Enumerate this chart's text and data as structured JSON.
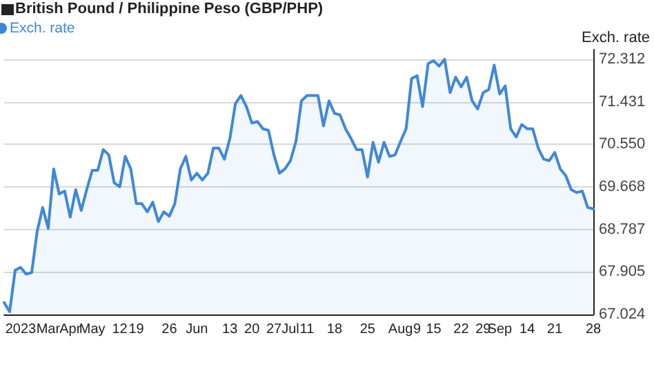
{
  "chart_data": {
    "type": "area",
    "title": "British Pound / Philippine Peso (GBP/PHP)",
    "ylabel": "Exch. rate",
    "legend": "top left",
    "grid": "y",
    "marker": "none",
    "line_style": "solid",
    "ylim": [
      67.024,
      72.51
    ],
    "yticks": [
      67.024,
      67.905,
      68.787,
      69.668,
      {
        "value": 70.55,
        "label": "70.550"
      },
      71.431,
      72.312
    ],
    "categories": [
      null,
      null,
      null,
      "2023",
      null,
      null,
      null,
      null,
      "Mar",
      null,
      null,
      null,
      "Apr",
      null,
      null,
      null,
      "May",
      null,
      null,
      null,
      null,
      "12",
      null,
      null,
      "19",
      null,
      null,
      null,
      null,
      null,
      "26",
      null,
      null,
      null,
      null,
      "Jun",
      null,
      null,
      null,
      null,
      null,
      "13",
      null,
      null,
      null,
      "20",
      null,
      null,
      null,
      "27",
      null,
      null,
      "Jul",
      null,
      null,
      "11",
      null,
      null,
      null,
      null,
      "18",
      null,
      null,
      null,
      null,
      null,
      "25",
      null,
      null,
      null,
      null,
      null,
      "Aug",
      null,
      null,
      "9",
      null,
      null,
      "15",
      null,
      null,
      null,
      null,
      "22",
      null,
      null,
      null,
      "29",
      null,
      null,
      "Sep",
      null,
      null,
      null,
      null,
      "14",
      null,
      null,
      null,
      null,
      "21",
      null,
      null,
      null,
      null,
      null,
      null,
      "28"
    ],
    "series": [
      {
        "name": "Exch. rate",
        "color": "#3f87d9",
        "values": [
          67.27,
          67.08,
          67.94,
          68.0,
          67.86,
          67.89,
          68.75,
          69.24,
          68.81,
          70.04,
          69.52,
          69.58,
          69.04,
          69.61,
          69.18,
          69.61,
          70.01,
          70.01,
          70.44,
          70.33,
          69.75,
          69.67,
          70.3,
          70.04,
          69.32,
          69.32,
          69.15,
          69.35,
          68.95,
          69.15,
          69.06,
          69.32,
          70.04,
          70.3,
          69.81,
          69.95,
          69.81,
          69.95,
          70.47,
          70.47,
          70.24,
          70.67,
          71.39,
          71.56,
          71.33,
          70.99,
          71.02,
          70.87,
          70.84,
          70.33,
          69.95,
          70.04,
          70.21,
          70.61,
          71.45,
          71.56,
          71.56,
          71.56,
          70.93,
          71.45,
          71.19,
          71.16,
          70.87,
          70.67,
          70.44,
          70.44,
          69.87,
          70.59,
          70.18,
          70.59,
          70.3,
          70.33,
          70.61,
          70.87,
          71.91,
          71.97,
          71.33,
          72.22,
          72.28,
          72.17,
          72.31,
          71.62,
          71.94,
          71.74,
          71.94,
          71.45,
          71.28,
          71.62,
          71.68,
          72.19,
          71.59,
          71.76,
          70.87,
          70.7,
          70.96,
          70.87,
          70.87,
          70.47,
          70.24,
          70.21,
          70.38,
          70.04,
          69.9,
          69.61,
          69.55,
          69.58,
          69.24,
          69.21
        ]
      }
    ]
  }
}
